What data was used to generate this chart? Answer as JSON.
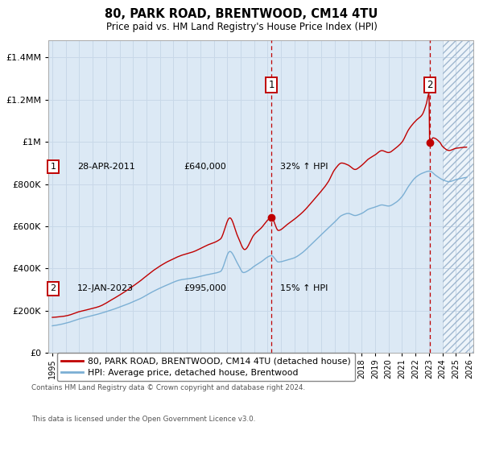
{
  "title": "80, PARK ROAD, BRENTWOOD, CM14 4TU",
  "subtitle": "Price paid vs. HM Land Registry's House Price Index (HPI)",
  "ytick_values": [
    0,
    200000,
    400000,
    600000,
    800000,
    1000000,
    1200000,
    1400000
  ],
  "ylim": [
    0,
    1480000
  ],
  "xlim_start": 1994.7,
  "xlim_end": 2026.3,
  "hatch_start": 2024.0,
  "ann1_x": 2011.3,
  "ann1_y": 640000,
  "ann1_date": "28-APR-2011",
  "ann1_price": "£640,000",
  "ann1_hpi": "32% ↑ HPI",
  "ann2_x": 2023.05,
  "ann2_y": 995000,
  "ann2_date": "12-JAN-2023",
  "ann2_price": "£995,000",
  "ann2_hpi": "15% ↑ HPI",
  "red_color": "#c00000",
  "blue_color": "#7bafd4",
  "bg_color": "#dce9f5",
  "grid_color": "#c8d8e8",
  "hatch_bg": "#ffffff",
  "legend_red": "80, PARK ROAD, BRENTWOOD, CM14 4TU (detached house)",
  "legend_blue": "HPI: Average price, detached house, Brentwood",
  "footnote1": "Contains HM Land Registry data © Crown copyright and database right 2024.",
  "footnote2": "This data is licensed under the Open Government Licence v3.0."
}
